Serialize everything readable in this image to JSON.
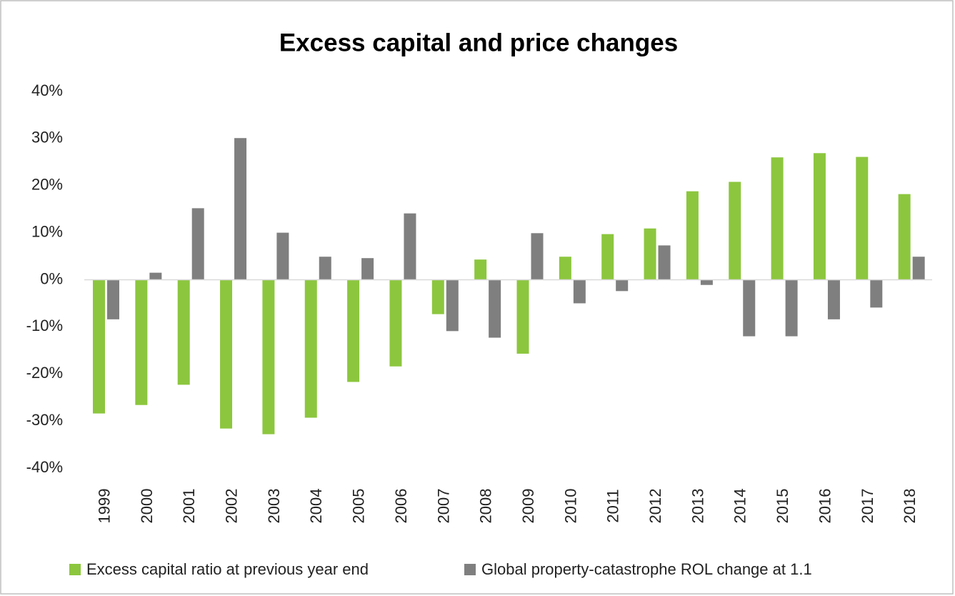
{
  "chart_data": {
    "type": "bar",
    "title": "Excess capital and price changes",
    "categories": [
      "1999",
      "2000",
      "2001",
      "2002",
      "2003",
      "2004",
      "2005",
      "2006",
      "2007",
      "2008",
      "2009",
      "2010",
      "2011",
      "2012",
      "2013",
      "2014",
      "2015",
      "2016",
      "2017",
      "2018"
    ],
    "series": [
      {
        "name": "Excess capital ratio at previous year end",
        "color": "#8cc63e",
        "values": [
          -28.4,
          -26.6,
          -22.3,
          -31.6,
          -32.8,
          -29.3,
          -21.7,
          -18.4,
          -7.3,
          4.3,
          -15.7,
          4.9,
          9.7,
          10.9,
          18.8,
          20.8,
          26.0,
          26.9,
          26.1,
          18.2
        ]
      },
      {
        "name": "Global property-catastrophe ROL change at 1.1",
        "color": "#7f7f7f",
        "values": [
          -8.4,
          1.5,
          15.2,
          30.1,
          10.0,
          4.9,
          4.6,
          14.1,
          -10.9,
          -12.3,
          9.9,
          -5.0,
          -2.4,
          7.3,
          -1.1,
          -12.0,
          -12.0,
          -8.4,
          -5.9,
          4.9
        ]
      }
    ],
    "ylim": [
      -40,
      40
    ],
    "yticks": [
      {
        "value": -40,
        "label": "-40%"
      },
      {
        "value": -30,
        "label": "-30%"
      },
      {
        "value": -20,
        "label": "-20%"
      },
      {
        "value": -10,
        "label": "-10%"
      },
      {
        "value": 0,
        "label": "0%"
      },
      {
        "value": 10,
        "label": "10%"
      },
      {
        "value": 20,
        "label": "20%"
      },
      {
        "value": 30,
        "label": "30%"
      },
      {
        "value": 40,
        "label": "40%"
      }
    ],
    "grid": false,
    "legend": "bottom"
  }
}
